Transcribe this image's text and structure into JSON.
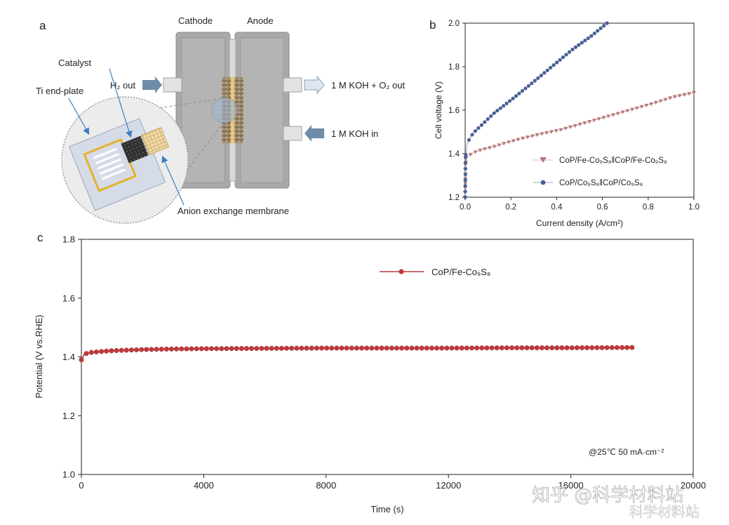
{
  "panel_a": {
    "letter": "a",
    "cathode": "Cathode",
    "anode": "Anode",
    "catalyst": "Catalyst",
    "ti_end_plate": "Ti end-plate",
    "h2_out": "H₂ out",
    "koh_o2_out": "1 M KOH + O₂ out",
    "koh_in": "1 M KOH in",
    "membrane": "Anion exchange membrane"
  },
  "colors": {
    "plate": "#a9a9a9",
    "series_fe": "#b87878",
    "series_co": "#4a5f96",
    "stability": "#c0393b"
  },
  "chart_data": [
    {
      "panel": "b",
      "type": "scatter",
      "xlabel": "Current density (A/cm²)",
      "ylabel": "Cell voltage (V)",
      "xlim": [
        0,
        1.0
      ],
      "ylim": [
        1.2,
        2.0
      ],
      "x_ticks": [
        "0.0",
        "0.2",
        "0.4",
        "0.6",
        "0.8",
        "1.0"
      ],
      "y_ticks": [
        "1.2",
        "1.4",
        "1.6",
        "1.8",
        "2.0"
      ],
      "legend_position": "right",
      "series": [
        {
          "name": "CoP/Fe-Co₉S₈‖CoP/Fe-Co₉S₈",
          "marker": "triangle-down",
          "color": "#b87878",
          "x": [
            0.0,
            0.0,
            0.0,
            0.002,
            0.004,
            0.008,
            0.015,
            0.03,
            0.05,
            0.08,
            0.12,
            0.18,
            0.25,
            0.33,
            0.42,
            0.52,
            0.62,
            0.72,
            0.82,
            0.91,
            1.0
          ],
          "y": [
            1.2,
            1.26,
            1.31,
            1.35,
            1.37,
            1.38,
            1.39,
            1.4,
            1.41,
            1.42,
            1.43,
            1.45,
            1.47,
            1.49,
            1.51,
            1.54,
            1.57,
            1.6,
            1.63,
            1.66,
            1.68
          ]
        },
        {
          "name": "CoP/Co₉S₈‖CoP/Co₉S₈",
          "marker": "circle",
          "color": "#4a5f96",
          "x": [
            0.0,
            0.0,
            0.0,
            0.002,
            0.004,
            0.008,
            0.015,
            0.025,
            0.04,
            0.06,
            0.09,
            0.13,
            0.18,
            0.24,
            0.31,
            0.39,
            0.47,
            0.55,
            0.62
          ],
          "y": [
            1.2,
            1.28,
            1.34,
            1.38,
            1.41,
            1.44,
            1.46,
            1.48,
            1.5,
            1.52,
            1.55,
            1.59,
            1.63,
            1.68,
            1.74,
            1.81,
            1.88,
            1.94,
            2.0
          ]
        }
      ]
    },
    {
      "panel": "c",
      "type": "line",
      "xlabel": "Time (s)",
      "ylabel": "Potential (V vs.RHE)",
      "xlim": [
        0,
        20000
      ],
      "ylim": [
        1.0,
        1.8
      ],
      "x_ticks": [
        "0",
        "4000",
        "8000",
        "12000",
        "16000",
        "20000"
      ],
      "y_ticks": [
        "1.0",
        "1.2",
        "1.4",
        "1.6",
        "1.8"
      ],
      "legend_position": "top-center",
      "annotation": "@25℃ 50 mA·cm⁻²",
      "series": [
        {
          "name": "CoP/Fe-Co₉S₈",
          "marker": "circle",
          "color": "#c0393b",
          "x": [
            0,
            100,
            300,
            600,
            1000,
            2000,
            3000,
            4000,
            6000,
            8000,
            10000,
            12000,
            14000,
            16000,
            18000
          ],
          "y": [
            1.39,
            1.41,
            1.415,
            1.418,
            1.421,
            1.425,
            1.427,
            1.428,
            1.429,
            1.43,
            1.43,
            1.43,
            1.431,
            1.431,
            1.432
          ]
        }
      ]
    }
  ],
  "watermark": {
    "text1": "知乎 @科学材料站",
    "text2": "科学材料站"
  }
}
